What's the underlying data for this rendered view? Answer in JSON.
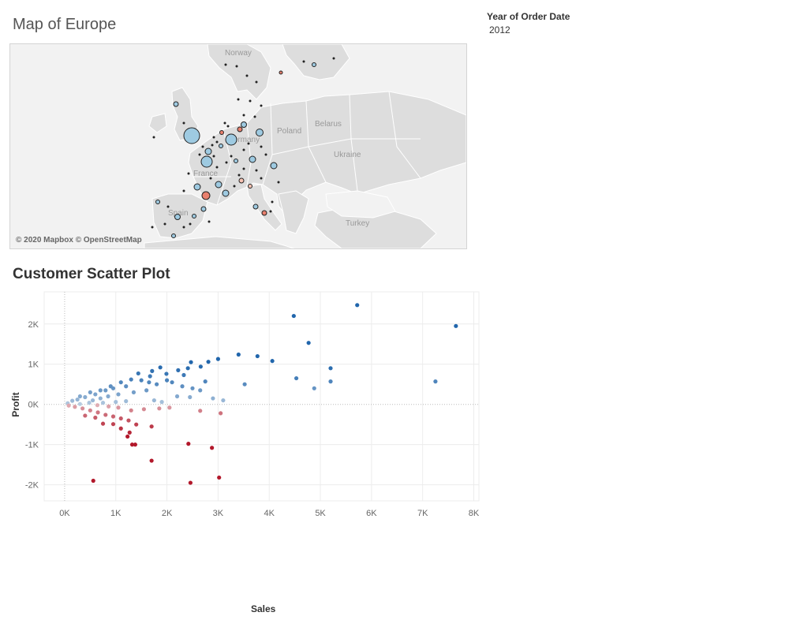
{
  "map": {
    "title": "Map of Europe",
    "attribution": "© 2020 Mapbox © OpenStreetMap",
    "country_labels": [
      "Norway",
      "Poland",
      "Belarus",
      "Ukraine",
      "Germany",
      "France",
      "Spain",
      "Turkey"
    ],
    "colors": {
      "land": "#dddddd",
      "sea": "#f2f2f2",
      "border": "#ffffff",
      "positive": "#9ecae1",
      "negative": "#e9806e"
    }
  },
  "filter": {
    "label": "Year of Order Date",
    "value": "2012"
  },
  "chart_data": {
    "type": "scatter",
    "title": "Customer Scatter Plot",
    "xlabel": "Sales",
    "ylabel": "Profit",
    "xlim": [
      -400,
      8100
    ],
    "ylim": [
      -2400,
      2800
    ],
    "x_ticks": [
      0,
      1000,
      2000,
      3000,
      4000,
      5000,
      6000,
      7000,
      8000
    ],
    "x_tick_labels": [
      "0K",
      "1K",
      "2K",
      "3K",
      "4K",
      "5K",
      "6K",
      "7K",
      "8K"
    ],
    "y_ticks": [
      -2000,
      -1000,
      0,
      1000,
      2000
    ],
    "y_tick_labels": [
      "-2K",
      "-1K",
      "0K",
      "1K",
      "2K"
    ],
    "color_scale": {
      "negative": "#b2182b",
      "zero": "#f7f7f7",
      "positive": "#2166ac"
    },
    "points": [
      [
        5720,
        2470
      ],
      [
        4480,
        2200
      ],
      [
        7650,
        1950
      ],
      [
        4770,
        1530
      ],
      [
        3770,
        1200
      ],
      [
        3400,
        1240
      ],
      [
        4060,
        1080
      ],
      [
        3000,
        1130
      ],
      [
        2810,
        1060
      ],
      [
        2470,
        1050
      ],
      [
        5200,
        900
      ],
      [
        2660,
        940
      ],
      [
        1870,
        920
      ],
      [
        1710,
        830
      ],
      [
        2410,
        900
      ],
      [
        2220,
        850
      ],
      [
        1440,
        770
      ],
      [
        1670,
        700
      ],
      [
        1990,
        760
      ],
      [
        2330,
        730
      ],
      [
        2750,
        570
      ],
      [
        3520,
        500
      ],
      [
        4530,
        650
      ],
      [
        5200,
        570
      ],
      [
        4880,
        400
      ],
      [
        7250,
        570
      ],
      [
        1300,
        620
      ],
      [
        1100,
        550
      ],
      [
        900,
        450
      ],
      [
        700,
        350
      ],
      [
        500,
        300
      ],
      [
        300,
        200
      ],
      [
        150,
        90
      ],
      [
        60,
        30
      ],
      [
        1500,
        600
      ],
      [
        1200,
        450
      ],
      [
        950,
        400
      ],
      [
        800,
        350
      ],
      [
        600,
        250
      ],
      [
        400,
        180
      ],
      [
        250,
        120
      ],
      [
        1650,
        550
      ],
      [
        1800,
        500
      ],
      [
        2000,
        600
      ],
      [
        2100,
        550
      ],
      [
        2300,
        450
      ],
      [
        2500,
        400
      ],
      [
        2650,
        350
      ],
      [
        1350,
        300
      ],
      [
        1600,
        350
      ],
      [
        1050,
        250
      ],
      [
        850,
        200
      ],
      [
        700,
        150
      ],
      [
        550,
        100
      ],
      [
        2200,
        200
      ],
      [
        2450,
        180
      ],
      [
        2900,
        150
      ],
      [
        3100,
        100
      ],
      [
        1750,
        100
      ],
      [
        1900,
        60
      ],
      [
        1200,
        80
      ],
      [
        1000,
        60
      ],
      [
        750,
        40
      ],
      [
        480,
        40
      ],
      [
        300,
        10
      ],
      [
        80,
        -30
      ],
      [
        200,
        -60
      ],
      [
        350,
        -100
      ],
      [
        500,
        -150
      ],
      [
        650,
        -200
      ],
      [
        800,
        -260
      ],
      [
        950,
        -300
      ],
      [
        1100,
        -350
      ],
      [
        1250,
        -400
      ],
      [
        400,
        -280
      ],
      [
        600,
        -330
      ],
      [
        750,
        -480
      ],
      [
        950,
        -490
      ],
      [
        1100,
        -600
      ],
      [
        1270,
        -700
      ],
      [
        1230,
        -800
      ],
      [
        1320,
        -1000
      ],
      [
        1380,
        -1000
      ],
      [
        1700,
        -1400
      ],
      [
        560,
        -1900
      ],
      [
        2460,
        -1950
      ],
      [
        3020,
        -1820
      ],
      [
        2420,
        -980
      ],
      [
        2880,
        -1080
      ],
      [
        1400,
        -500
      ],
      [
        1700,
        -550
      ],
      [
        1850,
        -100
      ],
      [
        2050,
        -80
      ],
      [
        1550,
        -120
      ],
      [
        1300,
        -150
      ],
      [
        1050,
        -80
      ],
      [
        860,
        -50
      ],
      [
        640,
        -20
      ],
      [
        2650,
        -160
      ],
      [
        3050,
        -220
      ]
    ]
  }
}
